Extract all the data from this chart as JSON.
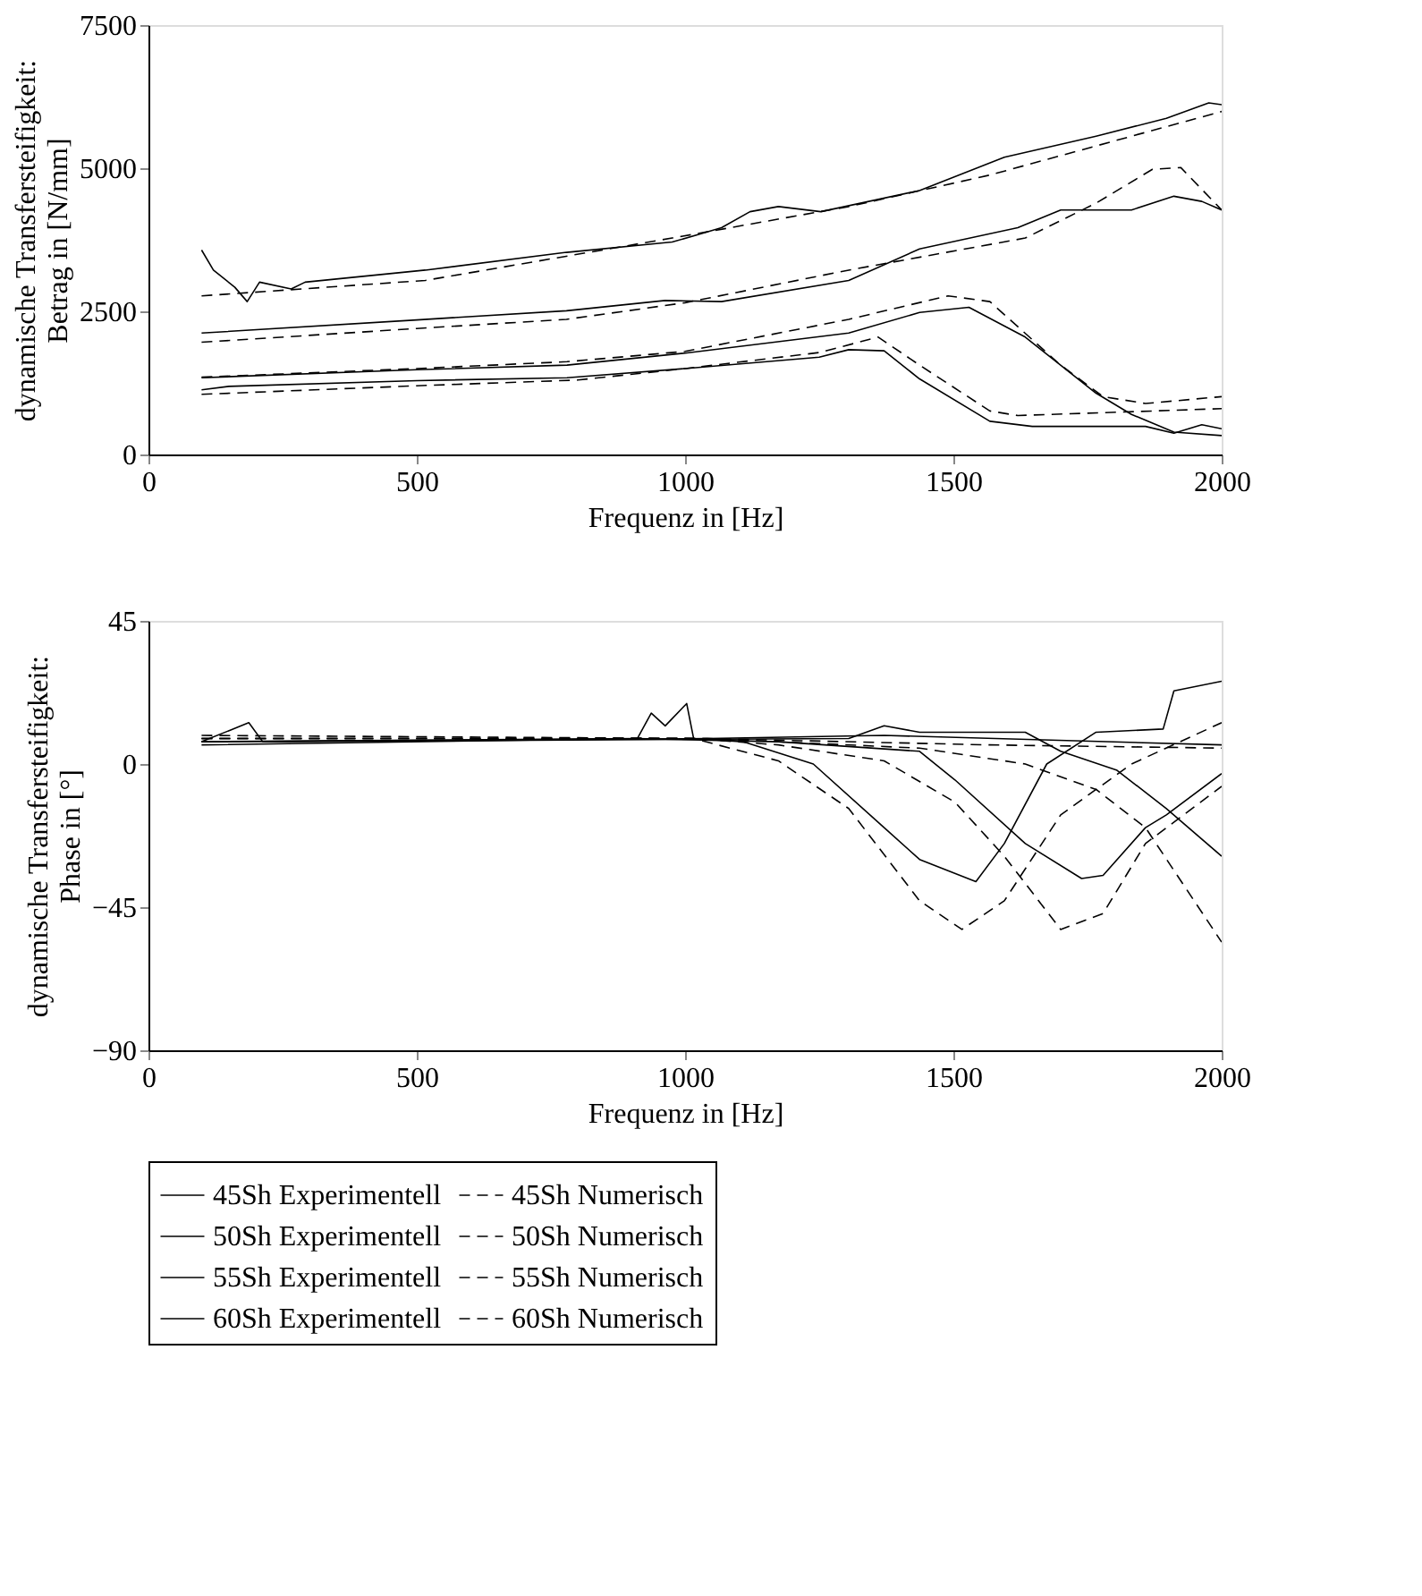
{
  "chart_data": [
    {
      "type": "line",
      "xlabel": "Frequenz in [Hz]",
      "ylabel": "dynamische Transfersteifigkeit:\nBetrag in [N/mm]",
      "xlim": [
        0,
        2000
      ],
      "xticks": [
        0,
        500,
        1000,
        1500,
        2000
      ],
      "ylim": [
        0,
        7500
      ],
      "yticks": [
        0,
        2500,
        5000,
        7500
      ],
      "grid": false,
      "legend": "bottom",
      "series": [
        {
          "name": "45Sh Experimentell",
          "color": "#000000",
          "line_style": "solid",
          "x": [
            99,
            150,
            500,
            780,
            1000,
            1250,
            1305,
            1371,
            1437,
            1568,
            1647,
            1858,
            1911,
            1963,
            2000
          ],
          "values": [
            1130,
            1190,
            1290,
            1340,
            1500,
            1700,
            1830,
            1810,
            1320,
            580,
            490,
            490,
            370,
            520,
            450
          ]
        },
        {
          "name": "45Sh Numerisch",
          "color": "#000000",
          "line_style": "dashed",
          "x": [
            99,
            500,
            800,
            1000,
            1250,
            1360,
            1437,
            1568,
            1620,
            2000
          ],
          "values": [
            1050,
            1200,
            1300,
            1500,
            1780,
            2050,
            1560,
            760,
            680,
            800
          ]
        },
        {
          "name": "50Sh Experimentell",
          "color": "#000000",
          "line_style": "solid",
          "x": [
            99,
            500,
            780,
            1000,
            1305,
            1437,
            1529,
            1634,
            1766,
            1832,
            1911,
            2000
          ],
          "values": [
            1340,
            1480,
            1560,
            1770,
            2120,
            2480,
            2570,
            2050,
            1070,
            700,
            390,
            330
          ]
        },
        {
          "name": "50Sh Numerisch",
          "color": "#000000",
          "line_style": "dashed",
          "x": [
            99,
            500,
            780,
            1000,
            1305,
            1490,
            1568,
            1700,
            1779,
            1858,
            2000
          ],
          "values": [
            1350,
            1500,
            1620,
            1800,
            2360,
            2770,
            2670,
            1560,
            1010,
            890,
            1010
          ]
        },
        {
          "name": "55Sh Experimentell",
          "color": "#000000",
          "line_style": "solid",
          "x": [
            99,
            500,
            779,
            963,
            1068,
            1305,
            1437,
            1620,
            1700,
            1832,
            1911,
            1963,
            2000
          ],
          "values": [
            2120,
            2350,
            2510,
            2690,
            2670,
            3040,
            3590,
            3960,
            4270,
            4270,
            4510,
            4420,
            4270
          ]
        },
        {
          "name": "55Sh Numerisch",
          "color": "#000000",
          "line_style": "dashed",
          "x": [
            99,
            500,
            779,
            1000,
            1305,
            1634,
            1766,
            1871,
            1924,
            2000
          ],
          "values": [
            1960,
            2200,
            2360,
            2650,
            3220,
            3780,
            4390,
            4980,
            5010,
            4270
          ]
        },
        {
          "name": "60Sh Experimentell",
          "color": "#000000",
          "line_style": "solid",
          "x": [
            99,
            121,
            161,
            184,
            207,
            266,
            292,
            516,
            779,
            976,
            1068,
            1121,
            1174,
            1253,
            1437,
            1595,
            1766,
            1897,
            1976,
            2000
          ],
          "values": [
            3570,
            3220,
            2920,
            2670,
            3010,
            2890,
            3010,
            3220,
            3530,
            3710,
            3960,
            4240,
            4330,
            4240,
            4610,
            5190,
            5560,
            5870,
            6140,
            6110
          ]
        },
        {
          "name": "60Sh Numerisch",
          "color": "#000000",
          "line_style": "dashed",
          "x": [
            99,
            516,
            976,
            1305,
            1568,
            2000
          ],
          "values": [
            2770,
            3040,
            3780,
            4330,
            4880,
            5990
          ]
        }
      ]
    },
    {
      "type": "line",
      "xlabel": "Frequenz in [Hz]",
      "ylabel": "dynamische Transfersteifigkeit:\nPhase in [°]",
      "xlim": [
        0,
        2000
      ],
      "xticks": [
        0,
        500,
        1000,
        1500,
        2000
      ],
      "ylim": [
        -90,
        45
      ],
      "yticks": [
        45,
        0,
        {
          "value": -45,
          "label": "−45"
        },
        {
          "value": -90,
          "label": "−90"
        }
      ],
      "grid": false,
      "legend": "bottom",
      "series": [
        {
          "name": "45Sh Experimentell",
          "color": "#000000",
          "line_style": "solid",
          "x": [
            99,
            911,
            937,
            963,
            1003,
            1016,
            1108,
            1239,
            1371,
            1437,
            1542,
            1595,
            1674,
            1766,
            1891,
            1911,
            2000
          ],
          "values": [
            6,
            8,
            16,
            12,
            19,
            8,
            7,
            0,
            -20,
            -30,
            -37,
            -25,
            0,
            10,
            11,
            23,
            26
          ]
        },
        {
          "name": "45Sh Numerisch",
          "color": "#000000",
          "line_style": "dashed",
          "x": [
            99,
            1016,
            1174,
            1305,
            1437,
            1516,
            1595,
            1700,
            1832,
            2000
          ],
          "values": [
            8,
            8,
            1,
            -14,
            -43,
            -52,
            -43,
            -16,
            0,
            13
          ]
        },
        {
          "name": "50Sh Experimentell",
          "color": "#000000",
          "line_style": "solid",
          "x": [
            99,
            911,
            1174,
            1437,
            1503,
            1634,
            1739,
            1779,
            1858,
            1897,
            2000
          ],
          "values": [
            7,
            8,
            7,
            4,
            -5,
            -25,
            -36,
            -35,
            -20,
            -16,
            -3
          ]
        },
        {
          "name": "50Sh Numerisch",
          "color": "#000000",
          "line_style": "dashed",
          "x": [
            99,
            1016,
            1174,
            1371,
            1503,
            1595,
            1700,
            1779,
            1858,
            2000
          ],
          "values": [
            8,
            8,
            6,
            1,
            -12,
            -29,
            -52,
            -47,
            -25,
            -7
          ]
        },
        {
          "name": "55Sh Experimentell",
          "color": "#000000",
          "line_style": "solid",
          "x": [
            99,
            187,
            213,
            1305,
            1371,
            1437,
            1634,
            1700,
            1805,
            1897,
            2000
          ],
          "values": [
            7,
            13,
            7,
            8,
            12,
            10,
            10,
            4,
            -2,
            -14,
            -29
          ]
        },
        {
          "name": "55Sh Numerisch",
          "color": "#000000",
          "line_style": "dashed",
          "x": [
            99,
            1042,
            1437,
            1634,
            1766,
            1858,
            2000
          ],
          "values": [
            8,
            8,
            5,
            0,
            -8,
            -20,
            -56
          ]
        },
        {
          "name": "60Sh Experimentell",
          "color": "#000000",
          "line_style": "solid",
          "x": [
            99,
            1042,
            1371,
            2000
          ],
          "values": [
            7,
            8,
            9,
            6
          ]
        },
        {
          "name": "60Sh Numerisch",
          "color": "#000000",
          "line_style": "dashed",
          "x": [
            99,
            1042,
            1568,
            2000
          ],
          "values": [
            9,
            8,
            6,
            5
          ]
        }
      ]
    }
  ]
}
